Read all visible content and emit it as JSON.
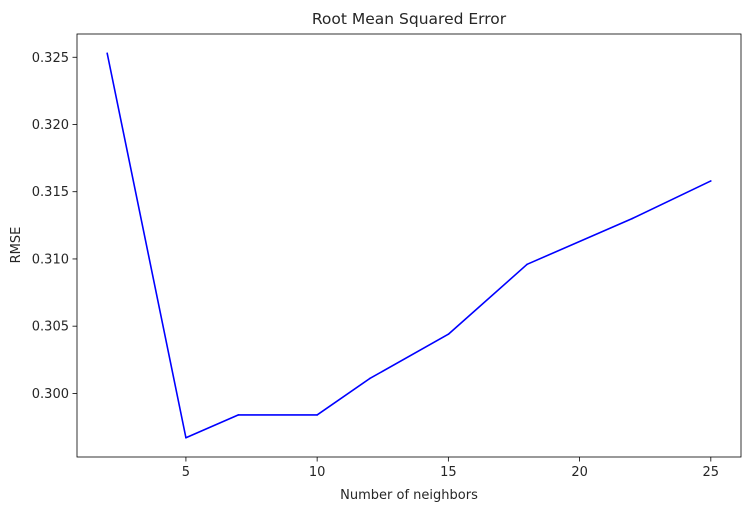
{
  "chart_data": {
    "type": "line",
    "title": "Root Mean Squared Error",
    "xlabel": "Number of neighbors",
    "ylabel": "RMSE",
    "x": [
      2,
      5,
      7,
      10,
      12,
      15,
      18,
      22,
      25
    ],
    "series": [
      {
        "values": [
          0.3253,
          0.2967,
          0.2984,
          0.2984,
          0.3011,
          0.3044,
          0.3096,
          0.313,
          0.3158
        ],
        "color": "#0000ff"
      }
    ],
    "xticks": [
      5,
      10,
      15,
      20,
      25
    ],
    "xtick_labels": [
      "5",
      "10",
      "15",
      "20",
      "25"
    ],
    "yticks": [
      0.3,
      0.305,
      0.31,
      0.315,
      0.32,
      0.325
    ],
    "ytick_labels": [
      "0.300",
      "0.305",
      "0.310",
      "0.315",
      "0.320",
      "0.325"
    ],
    "xlim": [
      0.85,
      26.15
    ],
    "ylim": [
      0.29527,
      0.32673
    ],
    "grid": false,
    "legend": "none"
  }
}
